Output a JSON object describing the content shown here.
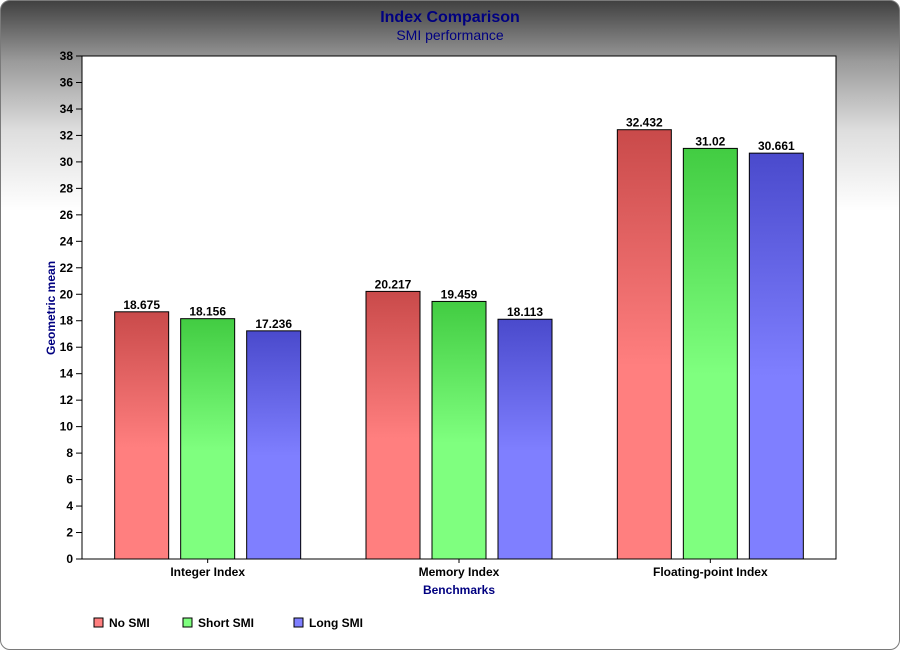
{
  "colors": {
    "title": "#000080",
    "series": [
      "#ff7f7f",
      "#7fff7f",
      "#7f7fff"
    ],
    "series_dark": [
      "#c94a4a",
      "#42cc42",
      "#4a4acc"
    ]
  },
  "chart_data": {
    "type": "bar",
    "title": "Index Comparison",
    "subtitle": "SMI performance",
    "xlabel": "Benchmarks",
    "ylabel": "Geometric mean",
    "categories": [
      "Integer Index",
      "Memory Index",
      "Floating-point Index"
    ],
    "series": [
      {
        "name": "No SMI",
        "values": [
          18.675,
          20.217,
          32.432
        ]
      },
      {
        "name": "Short SMI",
        "values": [
          18.156,
          19.459,
          31.02
        ]
      },
      {
        "name": "Long SMI",
        "values": [
          17.236,
          18.113,
          30.661
        ]
      }
    ],
    "ylim": [
      0,
      38
    ],
    "ytick_step": 2,
    "grid": false,
    "legend_position": "bottom-left"
  }
}
